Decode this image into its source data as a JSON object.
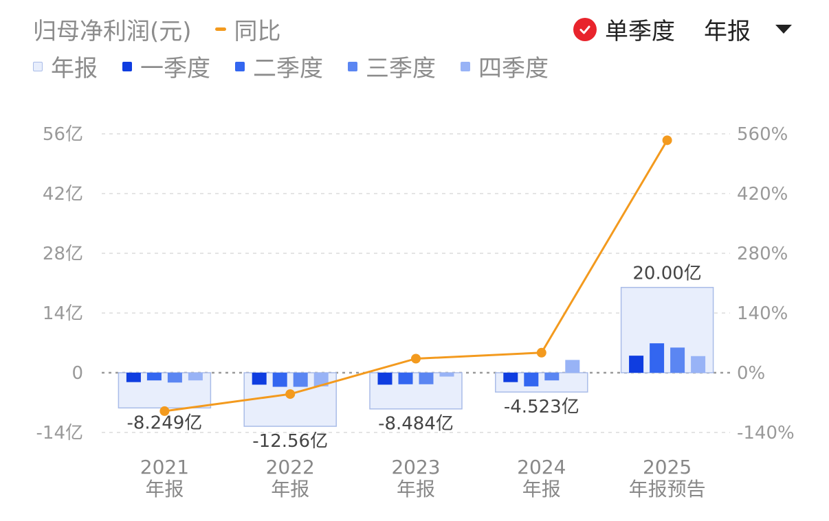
{
  "header": {
    "title": "归母净利润(元)",
    "yoy_label": "同比",
    "single_quarter_label": "单季度",
    "period_label": "年报"
  },
  "legend": [
    "年报",
    "一季度",
    "二季度",
    "三季度",
    "四季度"
  ],
  "colors": {
    "annual_fill": "#e8eefc",
    "annual_border": "#a9bce8",
    "q1": "#0f3de0",
    "q2": "#3366f0",
    "q3": "#5b86f2",
    "q4": "#98b3f6",
    "line": "#f39a1e",
    "check": "#e8242c"
  },
  "chart_data": {
    "type": "bar",
    "title": "归母净利润(元)",
    "categories": [
      [
        "2021",
        "年报"
      ],
      [
        "2022",
        "年报"
      ],
      [
        "2023",
        "年报"
      ],
      [
        "2024",
        "年报"
      ],
      [
        "2025",
        "年报预告"
      ]
    ],
    "annual": {
      "name": "年报",
      "values": [
        -8.249,
        -12.56,
        -8.484,
        -4.523,
        20.0
      ],
      "labels": [
        "-8.249亿",
        "-12.56亿",
        "-8.484亿",
        "-4.523亿",
        "20.00亿"
      ]
    },
    "quarters": [
      {
        "name": "一季度",
        "values": [
          -2.2,
          -2.8,
          -2.8,
          -2.2,
          4.0
        ]
      },
      {
        "name": "二季度",
        "values": [
          -1.8,
          -3.3,
          -2.7,
          -3.2,
          6.9
        ]
      },
      {
        "name": "三季度",
        "values": [
          -2.3,
          -3.3,
          -2.7,
          -1.8,
          5.9
        ]
      },
      {
        "name": "四季度",
        "values": [
          -1.8,
          -3.2,
          -0.9,
          3.0,
          3.9
        ]
      }
    ],
    "yoy": {
      "name": "同比",
      "values": [
        -90,
        -50,
        33,
        47,
        545
      ]
    },
    "y_left": {
      "ticks": [
        56,
        42,
        28,
        14,
        0,
        -14
      ],
      "tick_labels": [
        "56亿",
        "42亿",
        "28亿",
        "14亿",
        "0",
        "-14亿"
      ],
      "ylim": [
        -14,
        56
      ]
    },
    "y_right": {
      "ticks": [
        560,
        420,
        280,
        140,
        0,
        -140
      ],
      "tick_labels": [
        "560%",
        "420%",
        "280%",
        "140%",
        "0%",
        "-140%"
      ],
      "ylim": [
        -140,
        560
      ]
    }
  }
}
